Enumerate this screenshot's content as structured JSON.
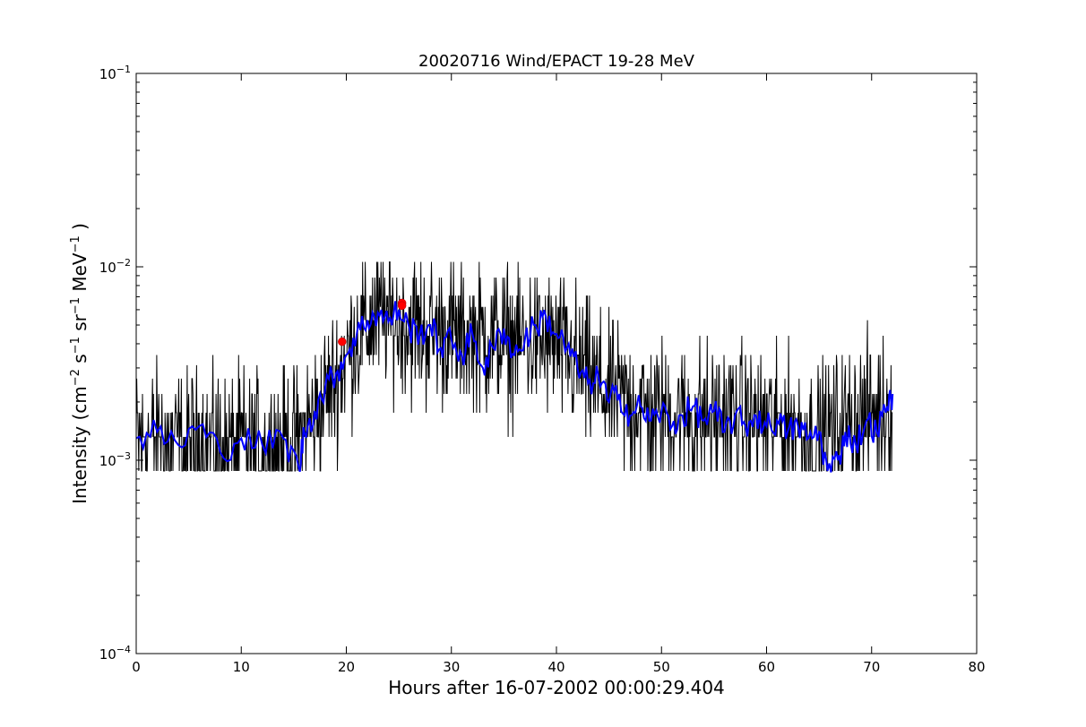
{
  "chart_data": {
    "type": "line",
    "title": "20020716 Wind/EPACT 19-28 MeV",
    "xlabel": "Hours after 16-07-2002 00:00:29.404",
    "ylabel": "Intensity (cm-2 s-1 sr-1 MeV-1 )",
    "ylabel_parts": [
      "Intensity (cm",
      "−2",
      " s",
      "−1",
      " sr",
      "−1",
      " MeV",
      "−1",
      " )"
    ],
    "xlim": [
      0,
      80
    ],
    "ylim": [
      0.0001,
      0.1
    ],
    "yscale": "log",
    "x_ticks": [
      0,
      10,
      20,
      30,
      40,
      50,
      60,
      70,
      80
    ],
    "x_tick_labels": [
      "0",
      "10",
      "20",
      "30",
      "40",
      "50",
      "60",
      "70",
      "80"
    ],
    "y_ticks": [
      0.0001,
      0.001,
      0.01,
      0.1
    ],
    "y_tick_labels": [
      {
        "base": "10",
        "exp": "−4"
      },
      {
        "base": "10",
        "exp": "−3"
      },
      {
        "base": "10",
        "exp": "−2"
      },
      {
        "base": "10",
        "exp": "−1"
      }
    ],
    "grid": false,
    "series": [
      {
        "style": "raw",
        "color": "#000000",
        "levels": [
          0.00088,
          0.00132,
          0.00176,
          0.0022,
          0.00264,
          0.0031,
          0.0035,
          0.0044,
          0.0053,
          0.0062,
          0.0071,
          0.0088,
          0.0106
        ],
        "x_range": [
          0,
          72
        ],
        "profile": [
          {
            "x": 0,
            "y": 0.0013
          },
          {
            "x": 5,
            "y": 0.0012
          },
          {
            "x": 10,
            "y": 0.0012
          },
          {
            "x": 15,
            "y": 0.0012
          },
          {
            "x": 17,
            "y": 0.0017
          },
          {
            "x": 19,
            "y": 0.0026
          },
          {
            "x": 21,
            "y": 0.0045
          },
          {
            "x": 23,
            "y": 0.0055
          },
          {
            "x": 25,
            "y": 0.005
          },
          {
            "x": 30,
            "y": 0.0045
          },
          {
            "x": 35,
            "y": 0.0042
          },
          {
            "x": 40,
            "y": 0.004
          },
          {
            "x": 43,
            "y": 0.0027
          },
          {
            "x": 45,
            "y": 0.0022
          },
          {
            "x": 50,
            "y": 0.0017
          },
          {
            "x": 60,
            "y": 0.0016
          },
          {
            "x": 65,
            "y": 0.0013
          },
          {
            "x": 68,
            "y": 0.0016
          },
          {
            "x": 72,
            "y": 0.0019
          }
        ]
      },
      {
        "style": "smoothed",
        "color": "#0000ff",
        "points": [
          {
            "x": 0,
            "y": 0.0013
          },
          {
            "x": 2,
            "y": 0.0014
          },
          {
            "x": 4,
            "y": 0.0012
          },
          {
            "x": 6,
            "y": 0.0015
          },
          {
            "x": 8,
            "y": 0.0011
          },
          {
            "x": 10,
            "y": 0.0013
          },
          {
            "x": 12,
            "y": 0.0012
          },
          {
            "x": 14,
            "y": 0.0013
          },
          {
            "x": 15.5,
            "y": 0.0009
          },
          {
            "x": 16,
            "y": 0.0014
          },
          {
            "x": 17,
            "y": 0.0018
          },
          {
            "x": 18,
            "y": 0.0024
          },
          {
            "x": 19,
            "y": 0.0028
          },
          {
            "x": 20,
            "y": 0.0035
          },
          {
            "x": 21,
            "y": 0.0045
          },
          {
            "x": 22,
            "y": 0.0053
          },
          {
            "x": 23,
            "y": 0.0058
          },
          {
            "x": 24,
            "y": 0.0052
          },
          {
            "x": 25,
            "y": 0.006
          },
          {
            "x": 26,
            "y": 0.0048
          },
          {
            "x": 27,
            "y": 0.0045
          },
          {
            "x": 28,
            "y": 0.005
          },
          {
            "x": 29,
            "y": 0.0038
          },
          {
            "x": 30,
            "y": 0.0042
          },
          {
            "x": 31,
            "y": 0.0035
          },
          {
            "x": 32,
            "y": 0.0045
          },
          {
            "x": 33,
            "y": 0.003
          },
          {
            "x": 34,
            "y": 0.0038
          },
          {
            "x": 35,
            "y": 0.0048
          },
          {
            "x": 36,
            "y": 0.0035
          },
          {
            "x": 37,
            "y": 0.0042
          },
          {
            "x": 38,
            "y": 0.005
          },
          {
            "x": 39,
            "y": 0.0055
          },
          {
            "x": 40,
            "y": 0.0045
          },
          {
            "x": 41,
            "y": 0.0038
          },
          {
            "x": 42,
            "y": 0.003
          },
          {
            "x": 43,
            "y": 0.0025
          },
          {
            "x": 44,
            "y": 0.0027
          },
          {
            "x": 45,
            "y": 0.002
          },
          {
            "x": 46,
            "y": 0.0022
          },
          {
            "x": 47,
            "y": 0.0017
          },
          {
            "x": 48,
            "y": 0.0019
          },
          {
            "x": 49,
            "y": 0.0016
          },
          {
            "x": 50,
            "y": 0.0018
          },
          {
            "x": 51,
            "y": 0.0015
          },
          {
            "x": 52,
            "y": 0.0017
          },
          {
            "x": 53,
            "y": 0.0019
          },
          {
            "x": 54,
            "y": 0.0016
          },
          {
            "x": 55,
            "y": 0.0018
          },
          {
            "x": 56,
            "y": 0.0014
          },
          {
            "x": 57,
            "y": 0.0017
          },
          {
            "x": 58,
            "y": 0.0015
          },
          {
            "x": 59,
            "y": 0.0017
          },
          {
            "x": 60,
            "y": 0.0015
          },
          {
            "x": 61,
            "y": 0.0016
          },
          {
            "x": 62,
            "y": 0.0014
          },
          {
            "x": 63,
            "y": 0.0015
          },
          {
            "x": 64,
            "y": 0.0013
          },
          {
            "x": 65,
            "y": 0.0014
          },
          {
            "x": 65.8,
            "y": 0.00088
          },
          {
            "x": 66.8,
            "y": 0.001
          },
          {
            "x": 67.5,
            "y": 0.0014
          },
          {
            "x": 68.5,
            "y": 0.0012
          },
          {
            "x": 69.5,
            "y": 0.0016
          },
          {
            "x": 70.5,
            "y": 0.0014
          },
          {
            "x": 71.5,
            "y": 0.0019
          },
          {
            "x": 72,
            "y": 0.0022
          }
        ]
      }
    ],
    "markers": [
      {
        "x": 19.6,
        "y": 0.0041,
        "color": "#ff0000"
      },
      {
        "x": 25.3,
        "y": 0.0065,
        "color": "#ff0000"
      },
      {
        "x": 25.3,
        "y": 0.0063,
        "color": "#ff0000"
      }
    ]
  }
}
